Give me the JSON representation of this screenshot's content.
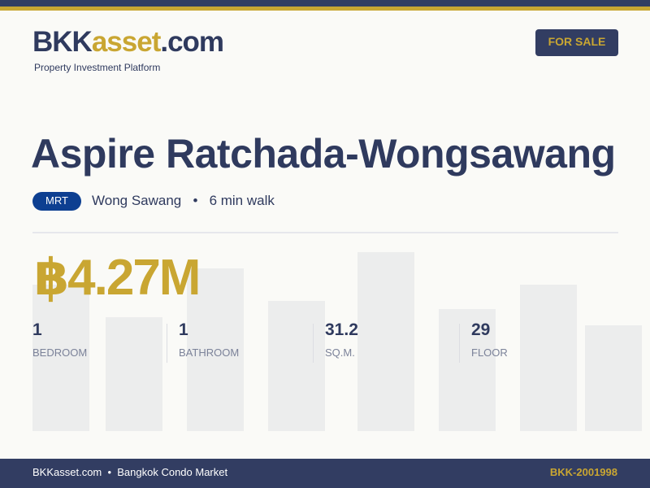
{
  "header": {
    "logo_part1": "BKK",
    "logo_part2": "asset",
    "logo_part3": ".com",
    "tagline": "Property Investment Platform",
    "badge": "FOR SALE"
  },
  "listing": {
    "title": "Aspire Ratchada-Wongsawang",
    "transit_type": "MRT",
    "station": "Wong Sawang",
    "separator": "•",
    "walk": "6 min walk",
    "price": "฿4.27M"
  },
  "stats": [
    {
      "value": "1",
      "label": "BEDROOM"
    },
    {
      "value": "1",
      "label": "BATHROOM"
    },
    {
      "value": "31.2",
      "label": "SQ.M."
    },
    {
      "value": "29",
      "label": "FLOOR"
    }
  ],
  "footer": {
    "left": "BKKasset.com  •  Bangkok Condo Market",
    "code": "BKK-2001998"
  },
  "colors": {
    "navy": "#323d62",
    "gold": "#c9a632",
    "mrt": "#0d3f91"
  }
}
